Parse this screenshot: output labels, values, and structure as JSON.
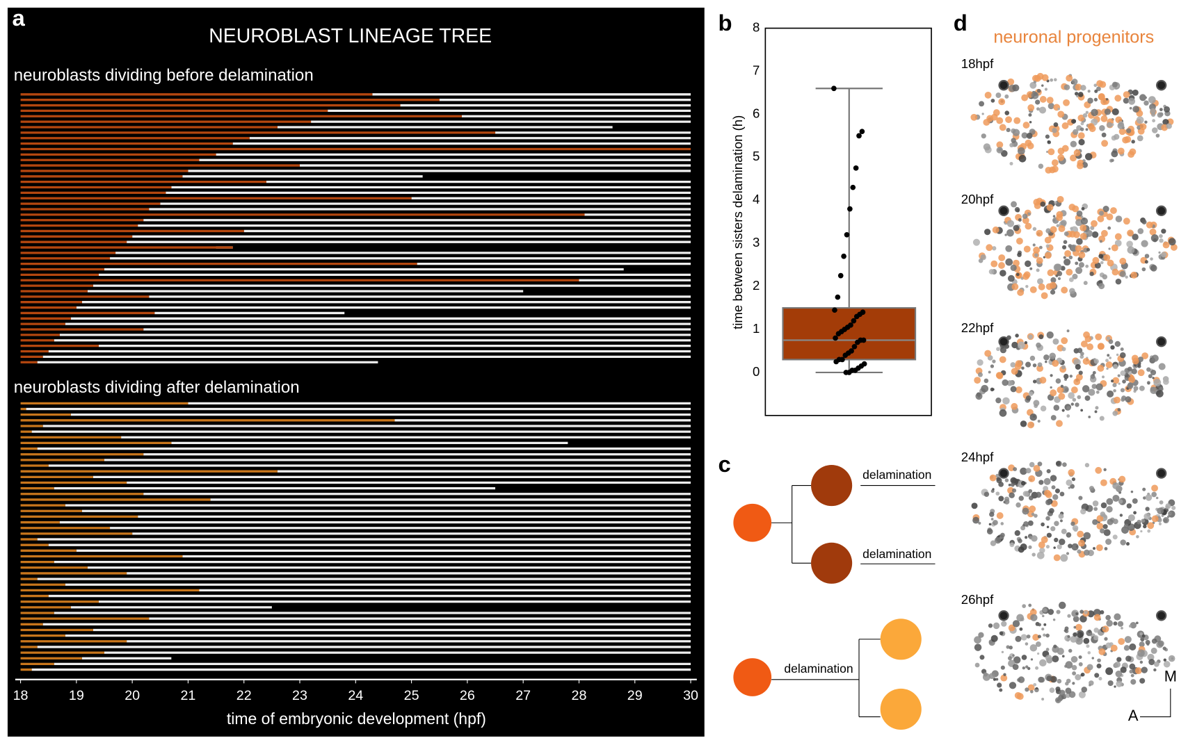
{
  "panel_labels": [
    "a",
    "b",
    "c",
    "d"
  ],
  "chart_data": [
    {
      "type": "timeline",
      "title": "NEUROBLAST LINEAGE TREE",
      "xlabel": "time of embryonic development (hpf)",
      "xlim": [
        18,
        30
      ],
      "xticks": [
        18,
        19,
        20,
        21,
        22,
        23,
        24,
        25,
        26,
        27,
        28,
        29,
        30
      ],
      "groups": [
        {
          "name": "neuroblasts dividing before delamination",
          "color": "#b4470f",
          "rows": [
            [
              24.3,
              30
            ],
            [
              25.5,
              30
            ],
            [
              24.8,
              30
            ],
            [
              23.5,
              30
            ],
            [
              25.9,
              30
            ],
            [
              23.2,
              30
            ],
            [
              22.6,
              28.6
            ],
            [
              26.5,
              30
            ],
            [
              22.1,
              30
            ],
            [
              21.8,
              30
            ],
            [
              30,
              30
            ],
            [
              21.5,
              30
            ],
            [
              21.2,
              30
            ],
            [
              23.0,
              30
            ],
            [
              21.0,
              30
            ],
            [
              20.9,
              25.2
            ],
            [
              22.4,
              30
            ],
            [
              20.7,
              30
            ],
            [
              20.6,
              30
            ],
            [
              25.0,
              30
            ],
            [
              20.5,
              30
            ],
            [
              20.3,
              30
            ],
            [
              28.1,
              30
            ],
            [
              20.2,
              30
            ],
            [
              20.1,
              30
            ],
            [
              22.0,
              30
            ],
            [
              20.0,
              30
            ],
            [
              19.9,
              30
            ],
            [
              21.8,
              21.5
            ],
            [
              19.7,
              30
            ],
            [
              19.6,
              30
            ],
            [
              25.1,
              30
            ],
            [
              19.5,
              28.8
            ],
            [
              19.4,
              30
            ],
            [
              28.0,
              30
            ],
            [
              19.3,
              30
            ],
            [
              19.2,
              27.0
            ],
            [
              20.3,
              30
            ],
            [
              19.1,
              30
            ],
            [
              19.0,
              30
            ],
            [
              20.4,
              23.8
            ],
            [
              18.9,
              30
            ],
            [
              18.8,
              30
            ],
            [
              20.2,
              30
            ],
            [
              18.7,
              30
            ],
            [
              18.6,
              30
            ],
            [
              19.4,
              30
            ],
            [
              18.5,
              30
            ],
            [
              18.4,
              30
            ],
            [
              18.3,
              24.4
            ]
          ]
        },
        {
          "name": "neuroblasts dividing after delamination",
          "color": "#c8761c",
          "rows": [
            [
              21.0,
              30
            ],
            [
              18.1,
              30
            ],
            [
              18.9,
              30
            ],
            [
              24.7,
              30
            ],
            [
              18.4,
              30
            ],
            [
              18.2,
              30
            ],
            [
              19.8,
              30
            ],
            [
              20.7,
              27.8
            ],
            [
              18.3,
              30
            ],
            [
              20.2,
              30
            ],
            [
              19.5,
              30
            ],
            [
              18.5,
              30
            ],
            [
              22.6,
              30
            ],
            [
              19.3,
              30
            ],
            [
              19.9,
              30
            ],
            [
              18.6,
              26.5
            ],
            [
              20.2,
              30
            ],
            [
              21.4,
              30
            ],
            [
              18.8,
              30
            ],
            [
              19.1,
              30
            ],
            [
              20.1,
              30
            ],
            [
              18.7,
              30
            ],
            [
              19.6,
              30
            ],
            [
              20.0,
              30
            ],
            [
              18.3,
              30
            ],
            [
              18.5,
              30
            ],
            [
              19.0,
              30
            ],
            [
              20.9,
              30
            ],
            [
              18.6,
              30
            ],
            [
              19.2,
              30
            ],
            [
              19.9,
              30
            ],
            [
              18.3,
              30
            ],
            [
              18.8,
              30
            ],
            [
              21.2,
              30
            ],
            [
              18.5,
              30
            ],
            [
              19.4,
              30
            ],
            [
              18.9,
              22.5
            ],
            [
              18.6,
              30
            ],
            [
              20.3,
              30
            ],
            [
              18.4,
              30
            ],
            [
              19.3,
              30
            ],
            [
              18.8,
              30
            ],
            [
              19.9,
              30
            ],
            [
              18.3,
              30
            ],
            [
              19.5,
              30
            ],
            [
              19.1,
              20.7
            ],
            [
              18.6,
              30
            ],
            [
              18.2,
              30
            ]
          ]
        }
      ]
    },
    {
      "type": "box",
      "ylabel": "time between sisters delamination (h)",
      "ylim": [
        -1,
        8
      ],
      "yticks": [
        0,
        1,
        2,
        3,
        4,
        5,
        6,
        7,
        8
      ],
      "box": {
        "min": 0,
        "q1": 0.3,
        "median": 0.75,
        "q3": 1.5,
        "max": 6.6,
        "color": "#a33c08"
      },
      "points": [
        6.6,
        5.6,
        5.5,
        4.75,
        4.3,
        3.8,
        3.2,
        2.7,
        2.25,
        1.75,
        1.45,
        1.4,
        1.35,
        1.3,
        1.2,
        1.1,
        1.05,
        1.0,
        0.95,
        0.9,
        0.8,
        0.75,
        0.75,
        0.7,
        0.6,
        0.5,
        0.45,
        0.4,
        0.3,
        0.3,
        0.25,
        0.2,
        0.15,
        0.1,
        0.05,
        0.05,
        0.0,
        0.0
      ]
    }
  ],
  "diagram": {
    "labels": [
      "delamination",
      "delamination",
      "delamination"
    ]
  },
  "images": {
    "title": "neuronal progenitors",
    "timepoints": [
      "18hpf",
      "20hpf",
      "22hpf",
      "24hpf",
      "26hpf"
    ],
    "axes": [
      "M",
      "A"
    ]
  }
}
